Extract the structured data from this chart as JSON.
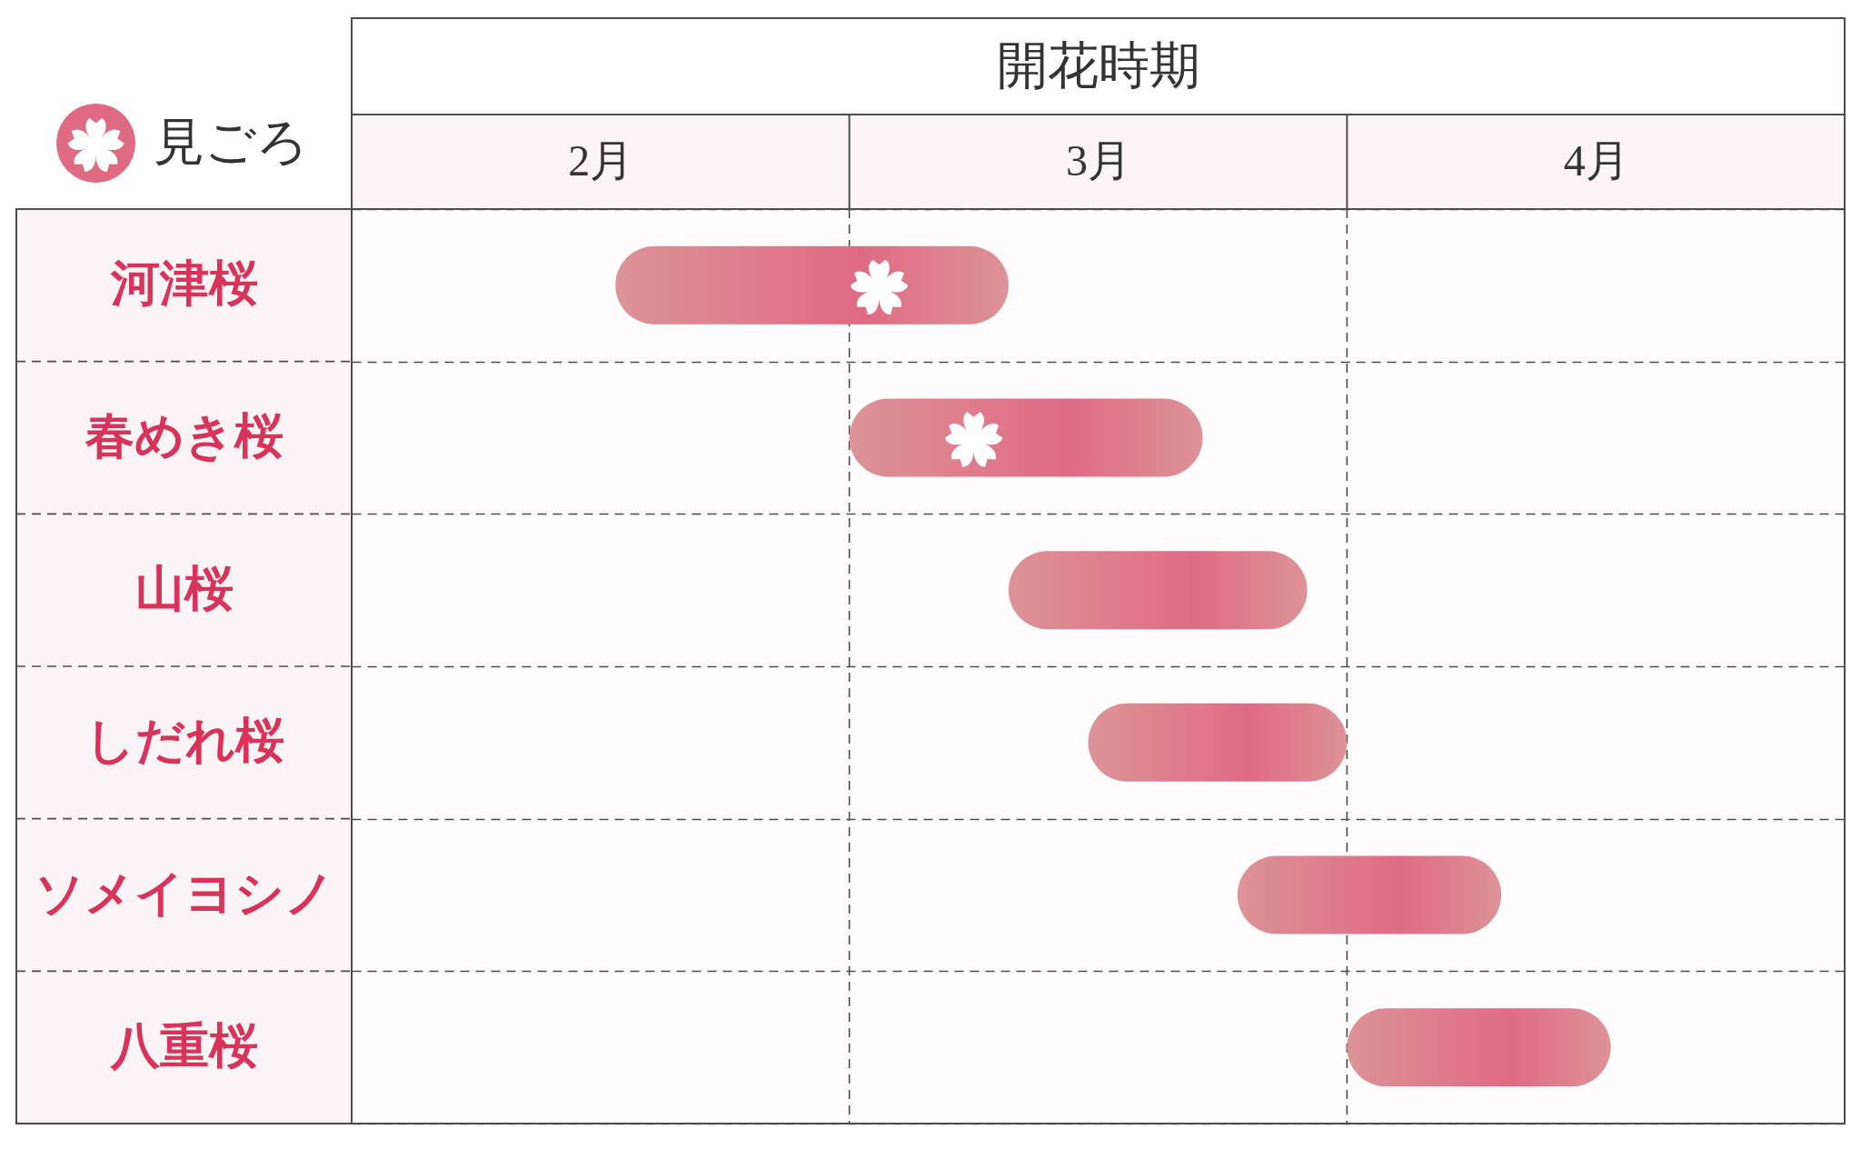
{
  "chart_data": {
    "type": "bar",
    "orientation": "horizontal",
    "xlabel": "開花時期",
    "categories": [
      "河津桜",
      "春めき桜",
      "山桜",
      "しだれ桜",
      "ソメイヨシノ",
      "八重桜"
    ],
    "xlim": [
      2,
      5
    ],
    "xticks": [
      {
        "value": 2.5,
        "label": "2月"
      },
      {
        "value": 3.5,
        "label": "3月"
      },
      {
        "value": 4.5,
        "label": "4月"
      }
    ],
    "series": [
      {
        "type": "bar",
        "color": "#e06a84",
        "base": [
          2.53,
          3,
          3.32,
          3.48,
          3.78,
          4
        ],
        "values": [
          0.79,
          0.71,
          0.6,
          0.52,
          0.53,
          0.53
        ]
      },
      {
        "type": "scatter",
        "name": "見ごろ",
        "color": "#ffffff",
        "values": [
          3.06,
          3.25,
          null,
          null,
          null,
          null
        ]
      }
    ],
    "ref_lines": [
      {
        "axis": "x",
        "value": 3,
        "line_style": "dashed"
      },
      {
        "axis": "x",
        "value": 4,
        "line_style": "dashed"
      }
    ],
    "grid": "y",
    "legend": "top left"
  }
}
